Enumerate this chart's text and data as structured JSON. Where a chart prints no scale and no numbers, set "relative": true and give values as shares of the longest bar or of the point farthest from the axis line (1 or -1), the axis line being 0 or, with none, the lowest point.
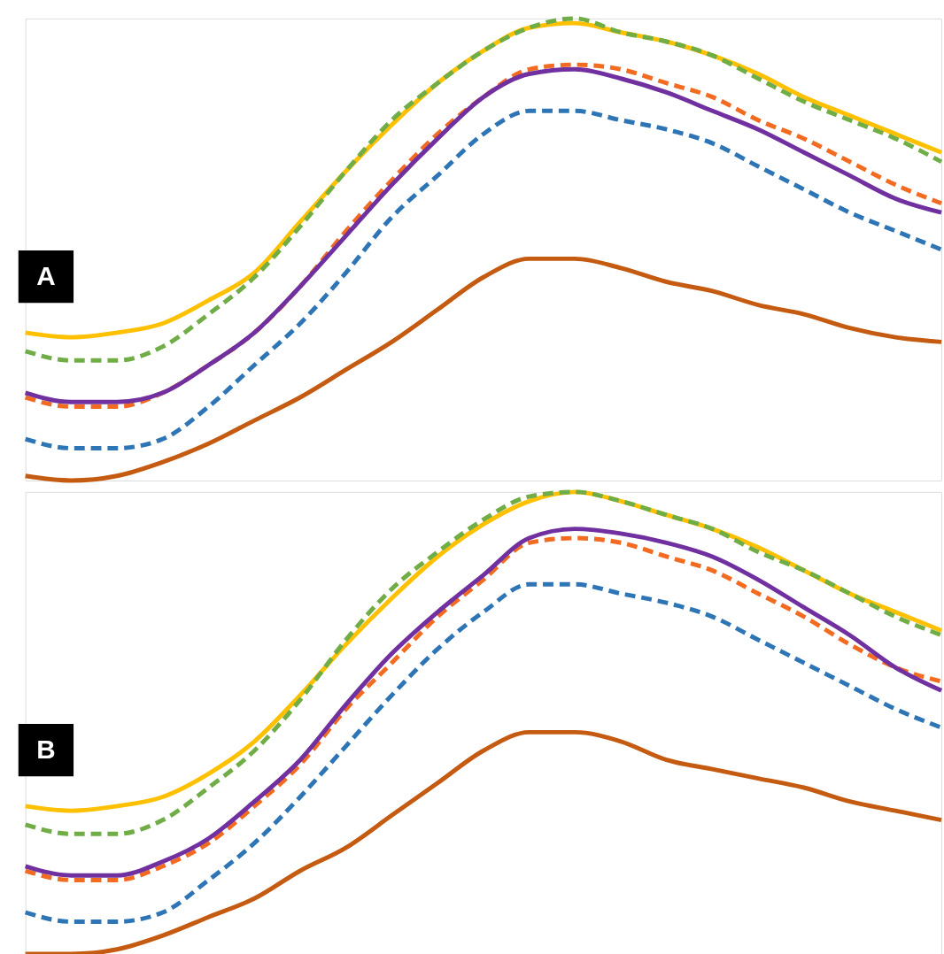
{
  "chart_data": [
    {
      "type": "line",
      "title": "A",
      "relative": true,
      "categories": [
        null,
        null,
        null,
        null,
        null,
        null,
        null,
        null,
        null,
        null,
        null,
        null,
        null,
        null,
        null,
        null,
        null,
        null,
        null,
        null,
        null
      ],
      "series": [
        {
          "color": "#ffc000",
          "line_style": "solid",
          "values": [
            0.32,
            0.31,
            0.32,
            0.34,
            0.39,
            0.45,
            0.56,
            0.67,
            0.77,
            0.86,
            0.93,
            0.98,
            0.99,
            0.97,
            0.95,
            0.92,
            0.88,
            0.83,
            0.79,
            0.75,
            0.71
          ]
        },
        {
          "color": "#70ad47",
          "line_style": "dashed",
          "values": [
            0.28,
            0.26,
            0.26,
            0.29,
            0.36,
            0.44,
            0.55,
            0.67,
            0.78,
            0.86,
            0.93,
            0.98,
            1.0,
            0.97,
            0.95,
            0.92,
            0.87,
            0.82,
            0.78,
            0.74,
            0.69
          ]
        },
        {
          "color": "#f26b21",
          "line_style": "dashed",
          "values": [
            0.18,
            0.16,
            0.16,
            0.19,
            0.25,
            0.32,
            0.42,
            0.54,
            0.65,
            0.75,
            0.83,
            0.89,
            0.9,
            0.89,
            0.86,
            0.83,
            0.78,
            0.74,
            0.69,
            0.64,
            0.6
          ]
        },
        {
          "color": "#7030a0",
          "line_style": "solid",
          "values": [
            0.19,
            0.17,
            0.17,
            0.19,
            0.25,
            0.32,
            0.42,
            0.53,
            0.64,
            0.74,
            0.83,
            0.88,
            0.89,
            0.87,
            0.84,
            0.8,
            0.76,
            0.71,
            0.66,
            0.61,
            0.58
          ]
        },
        {
          "color": "#2e75b6",
          "line_style": "dashed",
          "values": [
            0.09,
            0.07,
            0.07,
            0.09,
            0.16,
            0.25,
            0.34,
            0.45,
            0.57,
            0.66,
            0.75,
            0.8,
            0.8,
            0.78,
            0.76,
            0.73,
            0.68,
            0.63,
            0.58,
            0.54,
            0.5
          ]
        },
        {
          "color": "#c55a11",
          "line_style": "solid",
          "values": [
            0.01,
            0,
            0.01,
            0.04,
            0.08,
            0.13,
            0.18,
            0.24,
            0.3,
            0.37,
            0.44,
            0.48,
            0.48,
            0.46,
            0.43,
            0.41,
            0.38,
            0.36,
            0.33,
            0.31,
            0.3
          ]
        }
      ]
    },
    {
      "type": "line",
      "title": "B",
      "relative": true,
      "categories": [
        null,
        null,
        null,
        null,
        null,
        null,
        null,
        null,
        null,
        null,
        null,
        null,
        null,
        null,
        null,
        null,
        null,
        null,
        null,
        null,
        null
      ],
      "series": [
        {
          "color": "#ffc000",
          "line_style": "solid",
          "values": [
            0.32,
            0.31,
            0.32,
            0.34,
            0.39,
            0.46,
            0.56,
            0.67,
            0.77,
            0.86,
            0.93,
            0.98,
            1.0,
            0.98,
            0.95,
            0.92,
            0.88,
            0.83,
            0.78,
            0.74,
            0.7
          ]
        },
        {
          "color": "#70ad47",
          "line_style": "dashed",
          "values": [
            0.28,
            0.26,
            0.26,
            0.29,
            0.36,
            0.44,
            0.55,
            0.68,
            0.79,
            0.87,
            0.94,
            0.99,
            1.0,
            0.98,
            0.95,
            0.92,
            0.87,
            0.83,
            0.78,
            0.73,
            0.69
          ]
        },
        {
          "color": "#f26b21",
          "line_style": "dashed",
          "values": [
            0.18,
            0.16,
            0.16,
            0.19,
            0.24,
            0.32,
            0.41,
            0.53,
            0.63,
            0.73,
            0.81,
            0.89,
            0.9,
            0.89,
            0.86,
            0.83,
            0.78,
            0.73,
            0.67,
            0.62,
            0.59
          ]
        },
        {
          "color": "#7030a0",
          "line_style": "solid",
          "values": [
            0.19,
            0.17,
            0.17,
            0.2,
            0.25,
            0.33,
            0.42,
            0.54,
            0.65,
            0.74,
            0.82,
            0.9,
            0.92,
            0.91,
            0.89,
            0.86,
            0.81,
            0.75,
            0.69,
            0.62,
            0.57
          ]
        },
        {
          "color": "#2e75b6",
          "line_style": "dashed",
          "values": [
            0.09,
            0.07,
            0.07,
            0.09,
            0.16,
            0.24,
            0.34,
            0.45,
            0.56,
            0.66,
            0.74,
            0.8,
            0.8,
            0.78,
            0.76,
            0.73,
            0.68,
            0.63,
            0.58,
            0.53,
            0.49
          ]
        },
        {
          "color": "#c55a11",
          "line_style": "solid",
          "values": [
            0,
            0,
            0.01,
            0.04,
            0.08,
            0.12,
            0.18,
            0.23,
            0.3,
            0.37,
            0.44,
            0.48,
            0.48,
            0.46,
            0.42,
            0.4,
            0.38,
            0.36,
            0.33,
            0.31,
            0.29
          ]
        }
      ]
    }
  ]
}
